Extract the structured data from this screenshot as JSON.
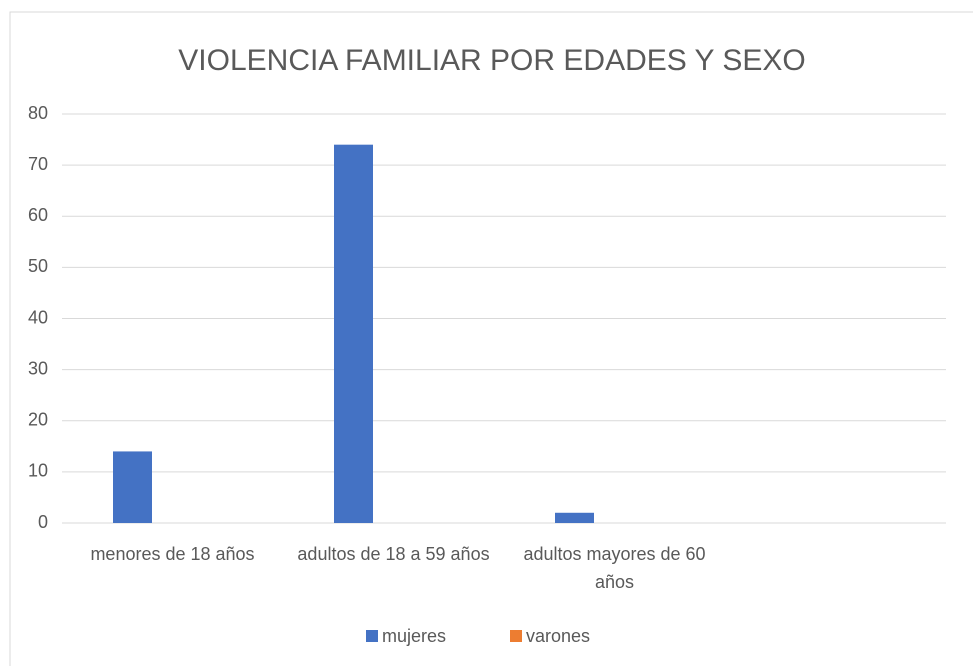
{
  "chart_data": {
    "type": "bar",
    "title": "VIOLENCIA FAMILIAR POR EDADES Y SEXO",
    "categories": [
      "menores de 18 años",
      "adultos de 18 a 59 años",
      "adultos mayores de 60 años",
      null
    ],
    "series": [
      {
        "name": "mujeres",
        "color": "#4472c4",
        "values": [
          14,
          74,
          2,
          null
        ]
      },
      {
        "name": "varones",
        "color": "#ed7d31",
        "values": [
          0,
          0,
          0,
          null
        ]
      }
    ],
    "ylim": [
      0,
      80
    ],
    "yticks": [
      0,
      10,
      20,
      30,
      40,
      50,
      60,
      70,
      80
    ],
    "grid": true,
    "legend": "bottom"
  }
}
